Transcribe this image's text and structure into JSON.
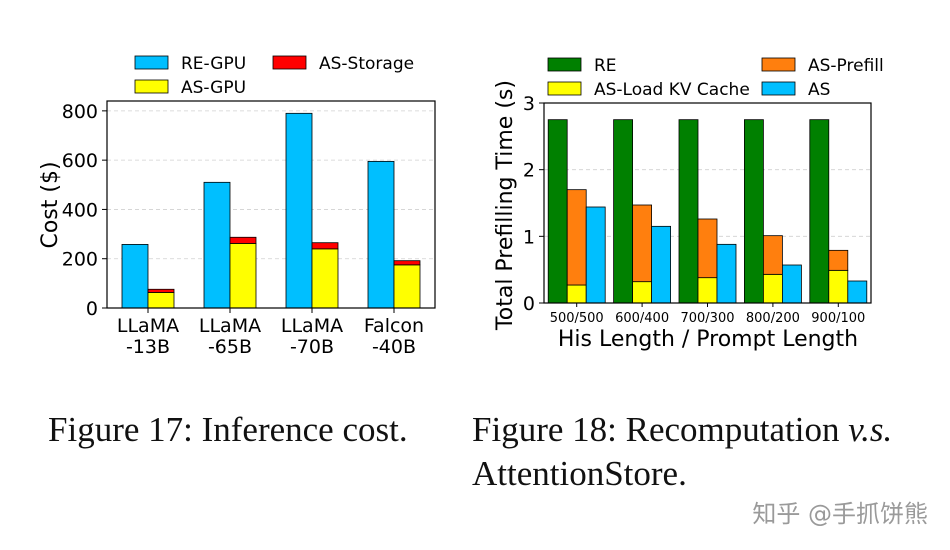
{
  "colors": {
    "re_gpu": "#00bfff",
    "as_gpu": "#ffff00",
    "as_storage": "#ff0000",
    "re": "#008000",
    "as_load": "#ffff00",
    "as_prefill": "#ff7f0e",
    "as": "#00bfff",
    "grid": "#d0d0d0"
  },
  "chart_data": [
    {
      "type": "bar",
      "stacked_series": [
        "AS-GPU",
        "AS-Storage"
      ],
      "ylabel": "Cost ($)",
      "ylim": [
        0,
        840
      ],
      "yticks": [
        0,
        200,
        400,
        600,
        800
      ],
      "grid": true,
      "legend": [
        "RE-GPU",
        "AS-Storage",
        "AS-GPU"
      ],
      "categories": [
        {
          "line1": "LLaMA",
          "line2": "-13B"
        },
        {
          "line1": "LLaMA",
          "line2": "-65B"
        },
        {
          "line1": "LLaMA",
          "line2": "-70B"
        },
        {
          "line1": "Falcon",
          "line2": "-40B"
        }
      ],
      "series": [
        {
          "name": "RE-GPU",
          "values": [
            258,
            510,
            790,
            595
          ]
        },
        {
          "name": "AS-GPU",
          "values": [
            63,
            262,
            240,
            175
          ]
        },
        {
          "name": "AS-Storage",
          "values": [
            13,
            25,
            25,
            17
          ]
        }
      ]
    },
    {
      "type": "bar",
      "stacked_series": [
        "AS-Load KV Cache",
        "AS-Prefill"
      ],
      "ylabel": "Total Prefilling Time (s)",
      "xlabel": "His Length / Prompt Length",
      "ylim": [
        0,
        3
      ],
      "yticks": [
        0,
        1,
        2,
        3
      ],
      "grid": true,
      "legend": [
        "RE",
        "AS-Prefill",
        "AS-Load KV Cache",
        "AS"
      ],
      "categories": [
        "500/500",
        "600/400",
        "700/300",
        "800/200",
        "900/100"
      ],
      "series": [
        {
          "name": "RE",
          "values": [
            2.75,
            2.75,
            2.75,
            2.75,
            2.75
          ]
        },
        {
          "name": "AS-Load KV Cache",
          "values": [
            0.27,
            0.32,
            0.38,
            0.43,
            0.49
          ]
        },
        {
          "name": "AS-Prefill",
          "values": [
            1.43,
            1.15,
            0.88,
            0.58,
            0.3
          ]
        },
        {
          "name": "AS",
          "values": [
            1.44,
            1.15,
            0.88,
            0.57,
            0.33
          ]
        }
      ]
    }
  ],
  "captions": {
    "fig17": "Figure 17: Inference cost.",
    "fig18_prefix": "Figure 18: Recomputation ",
    "fig18_vs": "v.s.",
    "fig18_suffix": "AttentionStore."
  },
  "watermark": "知乎 @手抓饼熊"
}
